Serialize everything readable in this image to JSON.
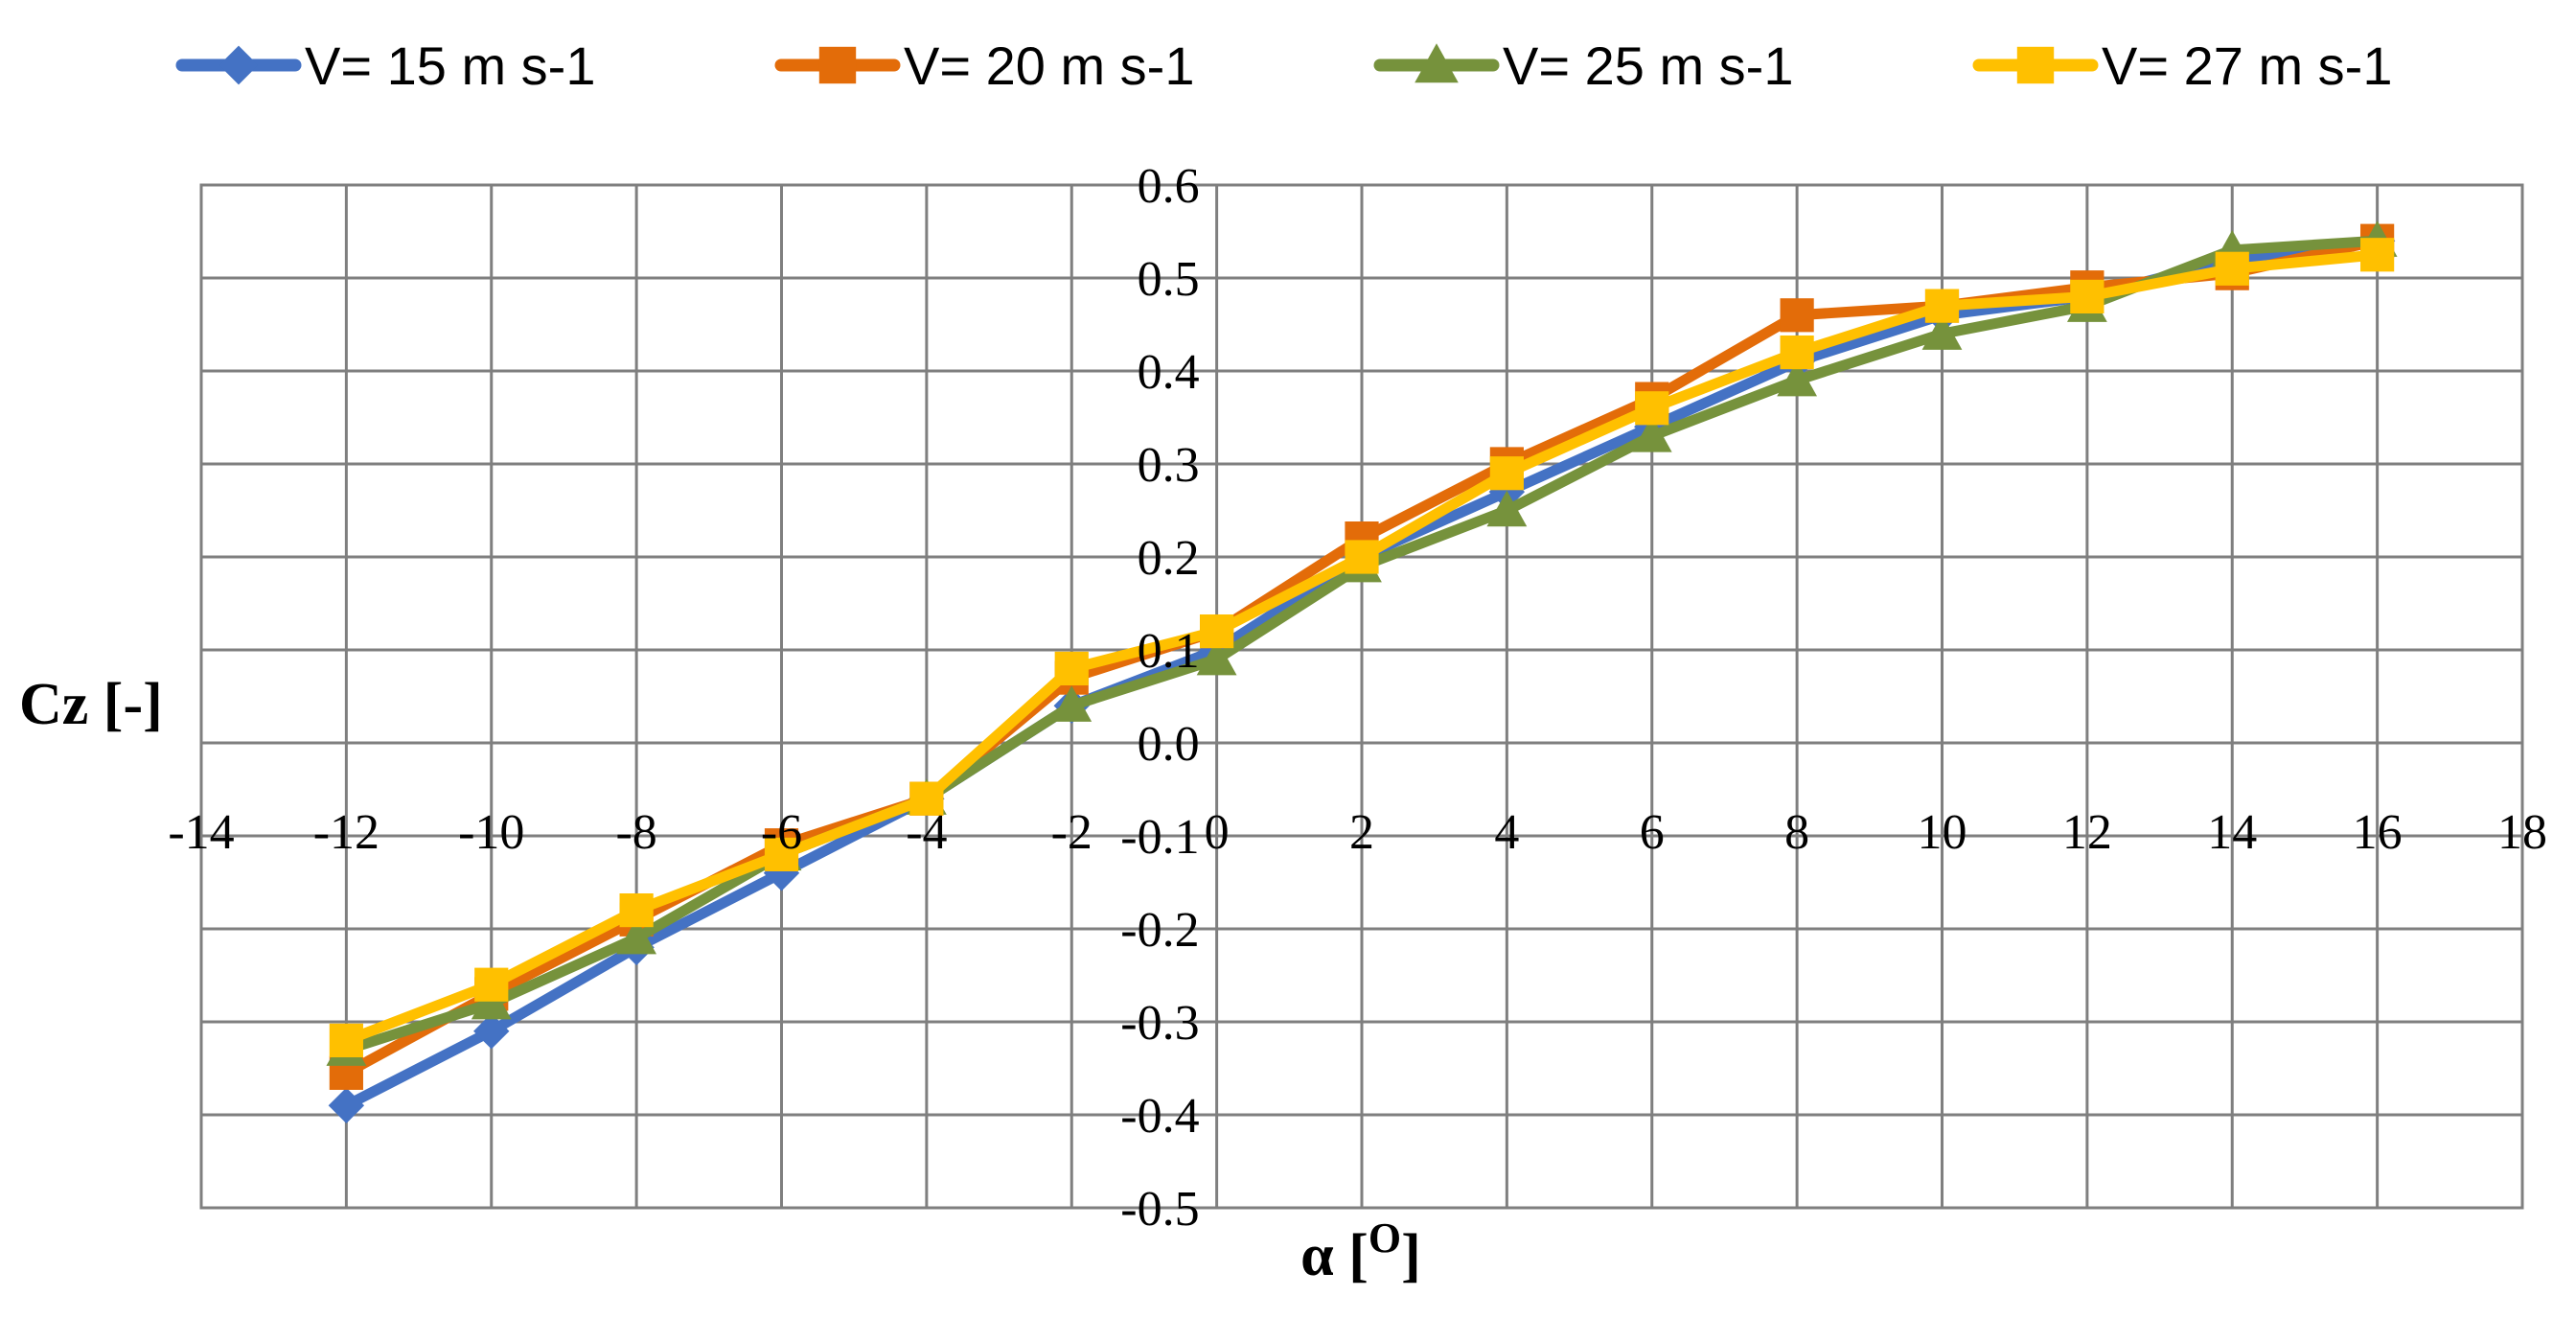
{
  "colors": {
    "background": "#ffffff",
    "grid": "#7f7f7f",
    "series": [
      "#4472c4",
      "#e36c09",
      "#76923c",
      "#ffc000"
    ]
  },
  "chart_data": {
    "type": "line",
    "xlabel": "α [O]",
    "ylabel": "Cz [-]",
    "xlim": [
      -14,
      18
    ],
    "ylim": [
      -0.5,
      0.6
    ],
    "x_ticks": [
      "-14",
      "-12",
      "-10",
      "-8",
      "-6",
      "-4",
      "-2",
      "0",
      "2",
      "4",
      "6",
      "8",
      "10",
      "12",
      "14",
      "16",
      "18"
    ],
    "y_ticks": [
      "-0.5",
      "-0.4",
      "-0.3",
      "-0.2",
      "-0.1",
      "0.0",
      "0.1",
      "0.2",
      "0.3",
      "0.4",
      "0.5",
      "0.6"
    ],
    "grid": true,
    "legend_position": "top",
    "x": [
      -12,
      -10,
      -8,
      -6,
      -4,
      -2,
      0,
      2,
      4,
      6,
      8,
      10,
      12,
      14,
      16
    ],
    "series": [
      {
        "name": "V= 15 m s-1",
        "marker": "diamond",
        "color": "#4472c4",
        "values": [
          -0.39,
          -0.31,
          -0.22,
          -0.14,
          -0.06,
          0.04,
          0.1,
          0.2,
          0.27,
          0.34,
          0.41,
          0.46,
          0.48,
          0.52,
          0.54
        ]
      },
      {
        "name": "V= 20 m s-1",
        "marker": "square",
        "color": "#e36c09",
        "values": [
          -0.355,
          -0.27,
          -0.19,
          -0.11,
          -0.06,
          0.07,
          0.12,
          0.22,
          0.3,
          0.37,
          0.46,
          0.47,
          0.49,
          0.505,
          0.54
        ]
      },
      {
        "name": "V= 25 m s-1",
        "marker": "triangle",
        "color": "#76923c",
        "values": [
          -0.33,
          -0.28,
          -0.21,
          -0.12,
          -0.06,
          0.04,
          0.09,
          0.19,
          0.25,
          0.33,
          0.39,
          0.44,
          0.47,
          0.53,
          0.54
        ]
      },
      {
        "name": "V= 27 m s-1",
        "marker": "square",
        "color": "#ffc000",
        "values": [
          -0.32,
          -0.26,
          -0.18,
          -0.12,
          -0.06,
          0.08,
          0.12,
          0.2,
          0.29,
          0.36,
          0.42,
          0.47,
          0.48,
          0.51,
          0.525
        ]
      }
    ]
  }
}
